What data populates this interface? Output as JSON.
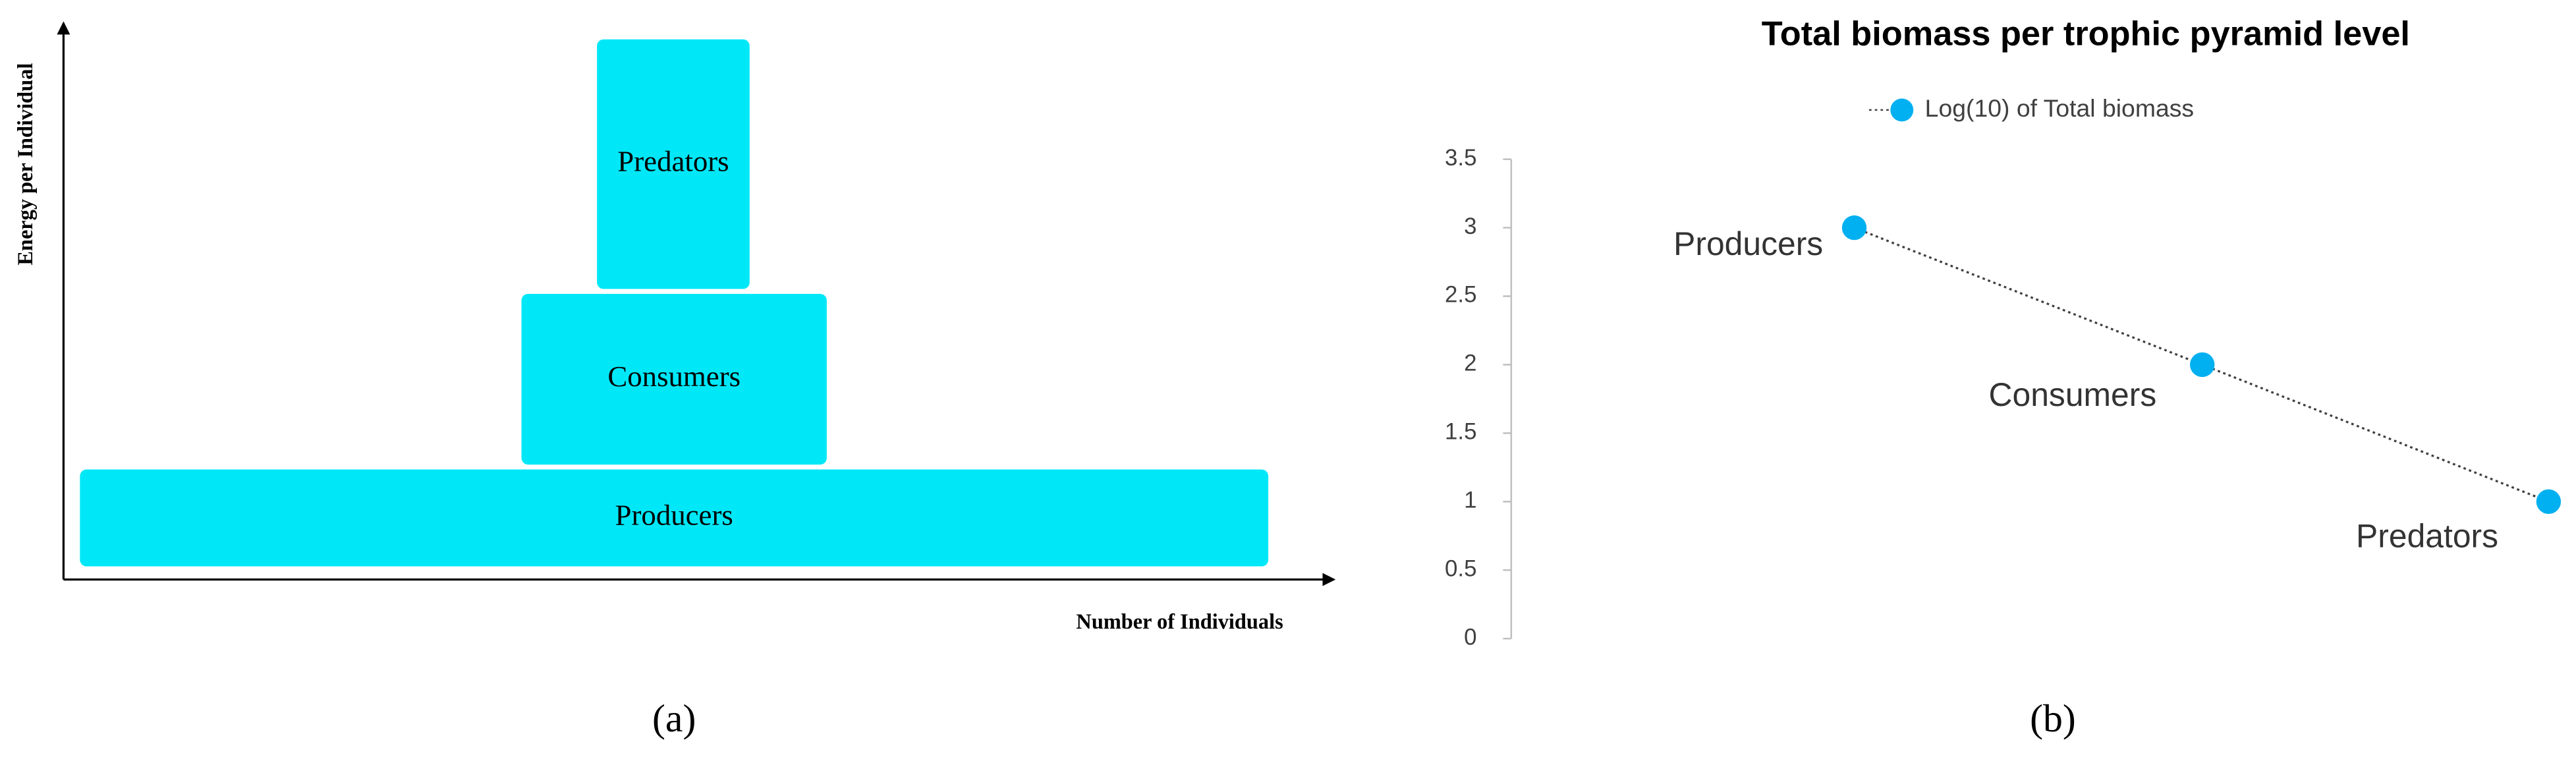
{
  "chart_data": [
    {
      "type": "pyramid",
      "levels": [
        "Predators",
        "Consumers",
        "Producers"
      ],
      "color": "#00e8f8",
      "xlabel": "Number of Individuals",
      "ylabel": "Energy per Individual",
      "caption": "(a)"
    },
    {
      "type": "line",
      "title": "Total biomass per trophic pyramid level",
      "categories": [
        "Producers",
        "Consumers",
        "Predators"
      ],
      "series": [
        {
          "name": "Log(10) of Total biomass",
          "color": "#00b0f0",
          "values": [
            3,
            2,
            1
          ]
        }
      ],
      "ylim": [
        0,
        3.5
      ],
      "yticks": [
        0,
        0.5,
        1,
        1.5,
        2,
        2.5,
        3,
        3.5
      ],
      "legend": "top",
      "caption": "(b)"
    }
  ]
}
